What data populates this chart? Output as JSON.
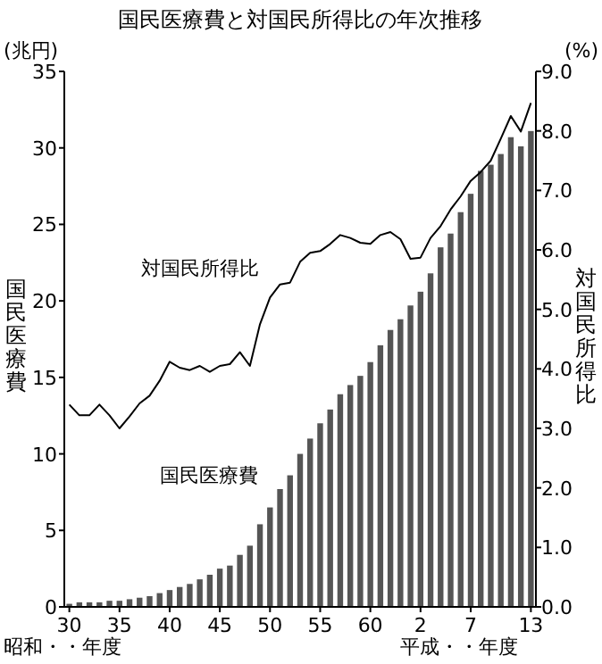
{
  "chart_data": {
    "type": "bar",
    "title": "国民医療費と対国民所得比の年次推移",
    "ylabel": "国民医療費",
    "y2label": "対国民所得比",
    "annotations": [
      "(兆円)",
      "(%)",
      "昭和・・年度",
      "平成・・年度"
    ],
    "categories": [
      "30",
      null,
      null,
      null,
      null,
      "35",
      null,
      null,
      null,
      null,
      "40",
      null,
      null,
      null,
      null,
      "45",
      null,
      null,
      null,
      null,
      "50",
      null,
      null,
      null,
      null,
      "55",
      null,
      null,
      null,
      null,
      "60",
      null,
      null,
      null,
      null,
      "2",
      null,
      null,
      null,
      null,
      "7",
      null,
      null,
      null,
      null,
      null,
      "13"
    ],
    "series": [
      {
        "name": "国民医療費",
        "color": "#555555",
        "values": [
          0.2,
          0.3,
          0.3,
          0.3,
          0.4,
          0.4,
          0.5,
          0.6,
          0.7,
          0.9,
          1.1,
          1.3,
          1.5,
          1.8,
          2.1,
          2.5,
          2.7,
          3.4,
          4.0,
          5.4,
          6.5,
          7.7,
          8.6,
          10.0,
          11.0,
          12.0,
          12.9,
          13.9,
          14.5,
          15.1,
          16.0,
          17.1,
          18.1,
          18.8,
          19.7,
          20.6,
          21.8,
          23.5,
          24.4,
          25.8,
          27.0,
          28.5,
          28.9,
          29.6,
          30.7,
          30.1,
          31.1
        ]
      },
      {
        "name": "対国民所得比",
        "type": "line",
        "axis": "y2",
        "color": "#000000",
        "values": [
          3.4,
          3.22,
          3.22,
          3.4,
          3.22,
          3.0,
          3.2,
          3.42,
          3.55,
          3.8,
          4.12,
          4.02,
          3.98,
          4.05,
          3.95,
          4.05,
          4.08,
          4.28,
          4.05,
          4.75,
          5.2,
          5.42,
          5.45,
          5.8,
          5.95,
          5.98,
          6.1,
          6.25,
          6.2,
          6.12,
          6.1,
          6.25,
          6.3,
          6.18,
          5.85,
          5.87,
          6.2,
          6.4,
          6.68,
          6.9,
          7.16,
          7.31,
          7.5,
          7.87,
          8.25,
          7.99,
          8.47
        ]
      }
    ],
    "ylim": [
      0,
      35
    ],
    "yticks": [
      0,
      5,
      10,
      15,
      20,
      25,
      30,
      35
    ],
    "y2lim": [
      0,
      9
    ],
    "y2ticks": [
      {
        "value": 0,
        "label": "0.0"
      },
      {
        "value": 1,
        "label": "1.0"
      },
      {
        "value": 2,
        "label": "2.0"
      },
      {
        "value": 3,
        "label": "3.0"
      },
      {
        "value": 4,
        "label": "4.0"
      },
      {
        "value": 5,
        "label": "5.0"
      },
      {
        "value": 6,
        "label": "6.0"
      },
      {
        "value": 7,
        "label": "7.0"
      },
      {
        "value": 8,
        "label": "8.0"
      },
      {
        "value": 9,
        "label": "9.0"
      }
    ],
    "grid": false
  }
}
